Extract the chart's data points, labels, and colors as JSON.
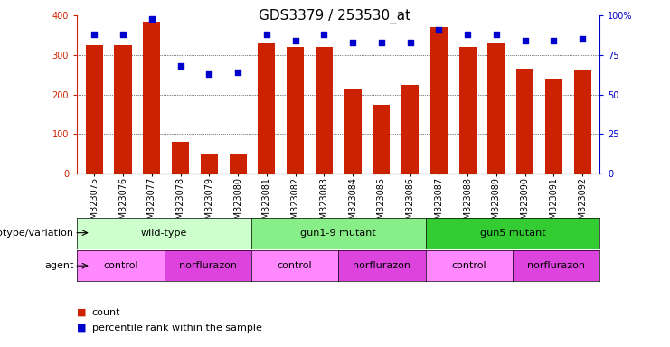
{
  "title": "GDS3379 / 253530_at",
  "samples": [
    "GSM323075",
    "GSM323076",
    "GSM323077",
    "GSM323078",
    "GSM323079",
    "GSM323080",
    "GSM323081",
    "GSM323082",
    "GSM323083",
    "GSM323084",
    "GSM323085",
    "GSM323086",
    "GSM323087",
    "GSM323088",
    "GSM323089",
    "GSM323090",
    "GSM323091",
    "GSM323092"
  ],
  "counts": [
    325,
    325,
    385,
    80,
    50,
    50,
    330,
    320,
    320,
    215,
    175,
    225,
    370,
    320,
    330,
    265,
    240,
    260
  ],
  "percentiles": [
    88,
    88,
    98,
    68,
    63,
    64,
    88,
    84,
    88,
    83,
    83,
    83,
    91,
    88,
    88,
    84,
    84,
    85
  ],
  "ylim_left": [
    0,
    400
  ],
  "ylim_right": [
    0,
    100
  ],
  "yticks_left": [
    0,
    100,
    200,
    300,
    400
  ],
  "yticks_right": [
    0,
    25,
    50,
    75,
    100
  ],
  "bar_color": "#cc2200",
  "dot_color": "#0000cc",
  "genotype_groups": [
    {
      "label": "wild-type",
      "start": 0,
      "end": 5,
      "color": "#ccffcc"
    },
    {
      "label": "gun1-9 mutant",
      "start": 6,
      "end": 11,
      "color": "#88ee88"
    },
    {
      "label": "gun5 mutant",
      "start": 12,
      "end": 17,
      "color": "#33cc33"
    }
  ],
  "agent_groups": [
    {
      "label": "control",
      "start": 0,
      "end": 2,
      "color": "#ff88ff"
    },
    {
      "label": "norflurazon",
      "start": 3,
      "end": 5,
      "color": "#dd44dd"
    },
    {
      "label": "control",
      "start": 6,
      "end": 8,
      "color": "#ff88ff"
    },
    {
      "label": "norflurazon",
      "start": 9,
      "end": 11,
      "color": "#dd44dd"
    },
    {
      "label": "control",
      "start": 12,
      "end": 14,
      "color": "#ff88ff"
    },
    {
      "label": "norflurazon",
      "start": 15,
      "end": 17,
      "color": "#dd44dd"
    }
  ],
  "genotype_label": "genotype/variation",
  "agent_label": "agent",
  "legend_count_label": "count",
  "legend_pct_label": "percentile rank within the sample",
  "title_fontsize": 11,
  "tick_fontsize": 7,
  "label_fontsize": 8,
  "annotation_fontsize": 8
}
